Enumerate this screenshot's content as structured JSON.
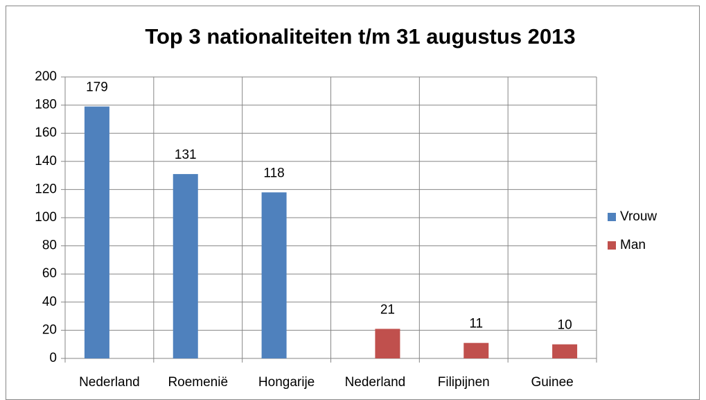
{
  "chart_data": {
    "type": "bar",
    "title": "Top 3 nationaliteiten t/m 31 augustus 2013",
    "categories": [
      "Nederland",
      "Roemenië",
      "Hongarije",
      "Nederland",
      "Filipijnen",
      "Guinee"
    ],
    "series": [
      {
        "name": "Vrouw",
        "color": "#4f81bd",
        "values": [
          179,
          131,
          118,
          null,
          null,
          null
        ]
      },
      {
        "name": "Man",
        "color": "#c0504d",
        "values": [
          null,
          null,
          null,
          21,
          11,
          10
        ]
      }
    ],
    "ylim": [
      0,
      200
    ],
    "yticks": [
      0,
      20,
      40,
      60,
      80,
      100,
      120,
      140,
      160,
      180,
      200
    ],
    "grid": true,
    "legend": "right"
  }
}
